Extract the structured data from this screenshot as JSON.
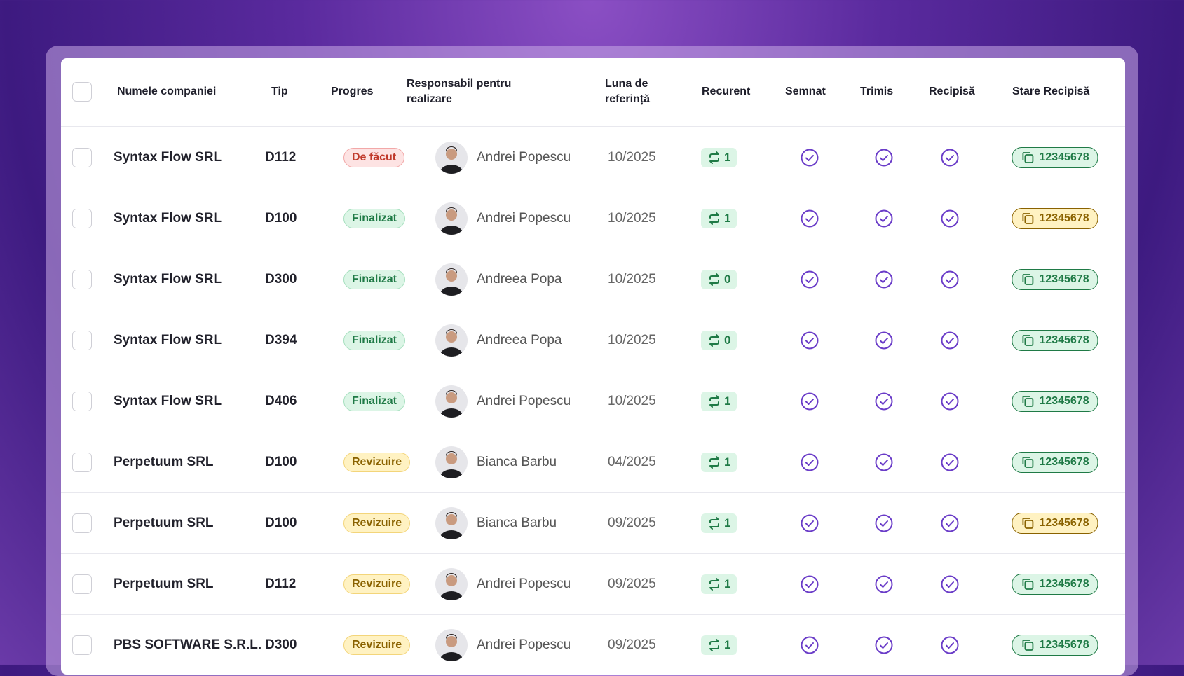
{
  "table": {
    "headers": [
      "Numele companiei",
      "Tip",
      "Progres",
      "Responsabil pentru realizare",
      "Luna de referință",
      "Recurent",
      "Semnat",
      "Trimis",
      "Recipisă",
      "Stare Recipisă"
    ],
    "rows": [
      {
        "company": "Syntax Flow SRL",
        "tip": "D112",
        "progres": "De făcut",
        "progres_tone": "red",
        "person": "Andrei Popescu",
        "month": "10/2025",
        "recurent": 1,
        "receipt": "12345678",
        "receipt_tone": "green"
      },
      {
        "company": "Syntax Flow SRL",
        "tip": "D100",
        "progres": "Finalizat",
        "progres_tone": "green",
        "person": "Andrei Popescu",
        "month": "10/2025",
        "recurent": 1,
        "receipt": "12345678",
        "receipt_tone": "yellow"
      },
      {
        "company": "Syntax Flow SRL",
        "tip": "D300",
        "progres": "Finalizat",
        "progres_tone": "green",
        "person": "Andreea Popa",
        "month": "10/2025",
        "recurent": 0,
        "receipt": "12345678",
        "receipt_tone": "green"
      },
      {
        "company": "Syntax Flow SRL",
        "tip": "D394",
        "progres": "Finalizat",
        "progres_tone": "green",
        "person": "Andreea Popa",
        "month": "10/2025",
        "recurent": 0,
        "receipt": "12345678",
        "receipt_tone": "green"
      },
      {
        "company": "Syntax Flow SRL",
        "tip": "D406",
        "progres": "Finalizat",
        "progres_tone": "green",
        "person": "Andrei Popescu",
        "month": "10/2025",
        "recurent": 1,
        "receipt": "12345678",
        "receipt_tone": "green"
      },
      {
        "company": "Perpetuum SRL",
        "tip": "D100",
        "progres": "Revizuire",
        "progres_tone": "yellow",
        "person": "Bianca Barbu",
        "month": "04/2025",
        "recurent": 1,
        "receipt": "12345678",
        "receipt_tone": "green"
      },
      {
        "company": "Perpetuum SRL",
        "tip": "D100",
        "progres": "Revizuire",
        "progres_tone": "yellow",
        "person": "Bianca Barbu",
        "month": "09/2025",
        "recurent": 1,
        "receipt": "12345678",
        "receipt_tone": "yellow"
      },
      {
        "company": "Perpetuum SRL",
        "tip": "D112",
        "progres": "Revizuire",
        "progres_tone": "yellow",
        "person": "Andrei Popescu",
        "month": "09/2025",
        "recurent": 1,
        "receipt": "12345678",
        "receipt_tone": "green"
      },
      {
        "company": "PBS SOFTWARE S.R.L.",
        "tip": "D300",
        "progres": "Revizuire",
        "progres_tone": "yellow",
        "person": "Andrei Popescu",
        "month": "09/2025",
        "recurent": 1,
        "receipt": "12345678",
        "receipt_tone": "green"
      }
    ]
  }
}
